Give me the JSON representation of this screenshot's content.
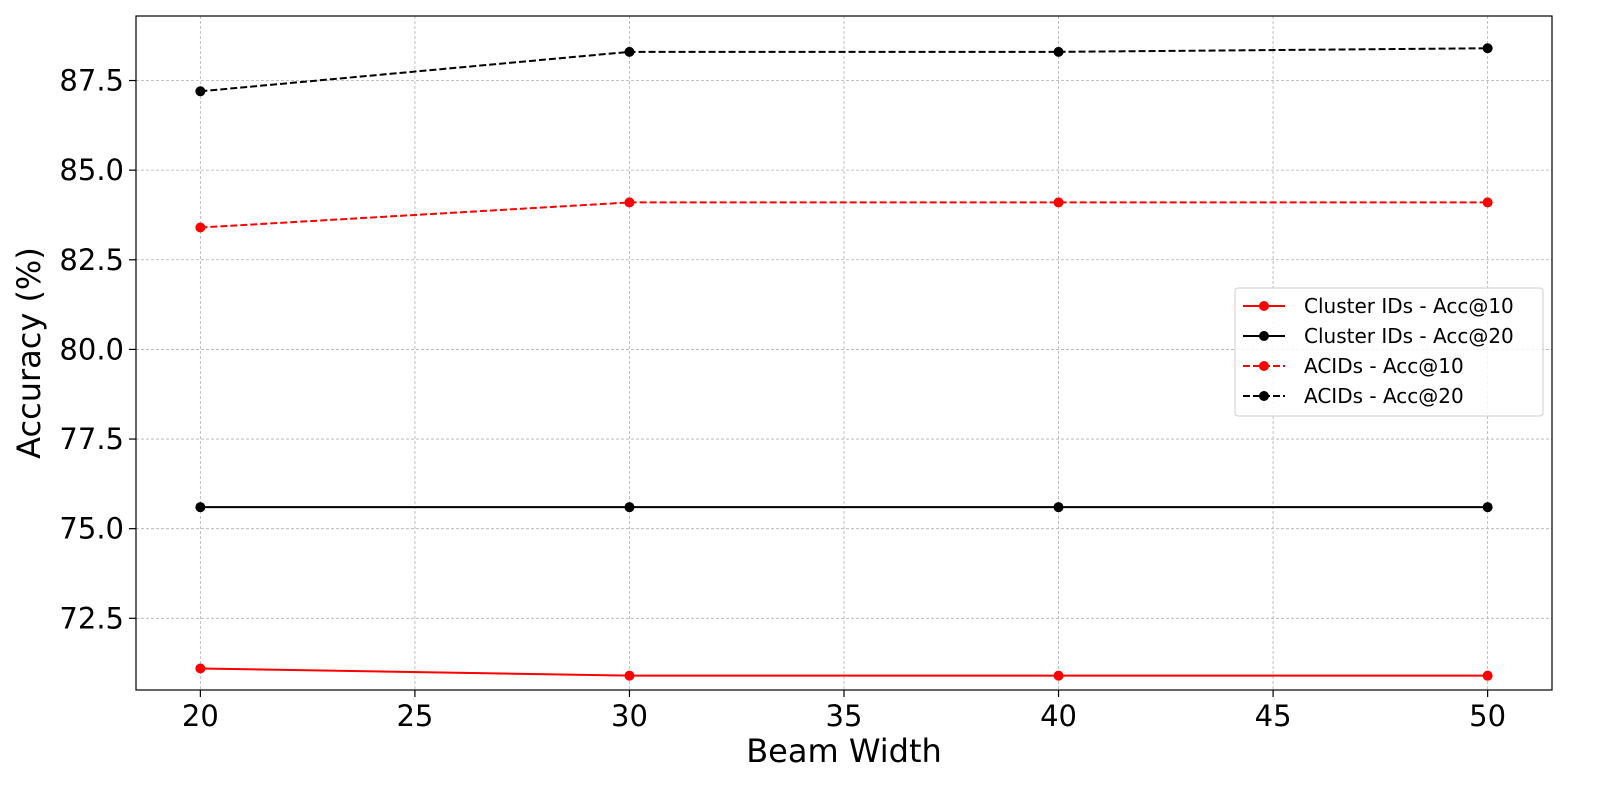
{
  "chart_data": {
    "type": "line",
    "title": "",
    "xlabel": "Beam Width",
    "ylabel": "Accuracy (%)",
    "x": [
      20,
      30,
      40,
      50
    ],
    "xlim": [
      18.5,
      51.5
    ],
    "ylim": [
      70.5,
      89.3
    ],
    "xticks": [
      20,
      25,
      30,
      35,
      40,
      45,
      50
    ],
    "yticks": [
      72.5,
      75.0,
      77.5,
      80.0,
      82.5,
      85.0,
      87.5
    ],
    "grid": true,
    "legend_position": "center-right",
    "series": [
      {
        "name": "Cluster IDs - Acc@10",
        "values": [
          71.1,
          70.9,
          70.9,
          70.9
        ],
        "color": "#ff0000",
        "linestyle": "solid"
      },
      {
        "name": "Cluster IDs - Acc@20",
        "values": [
          75.6,
          75.6,
          75.6,
          75.6
        ],
        "color": "#000000",
        "linestyle": "solid"
      },
      {
        "name": "ACIDs - Acc@10",
        "values": [
          83.4,
          84.1,
          84.1,
          84.1
        ],
        "color": "#ff0000",
        "linestyle": "dashed"
      },
      {
        "name": "ACIDs - Acc@20",
        "values": [
          87.2,
          88.3,
          88.3,
          88.4
        ],
        "color": "#000000",
        "linestyle": "dashed"
      }
    ]
  }
}
